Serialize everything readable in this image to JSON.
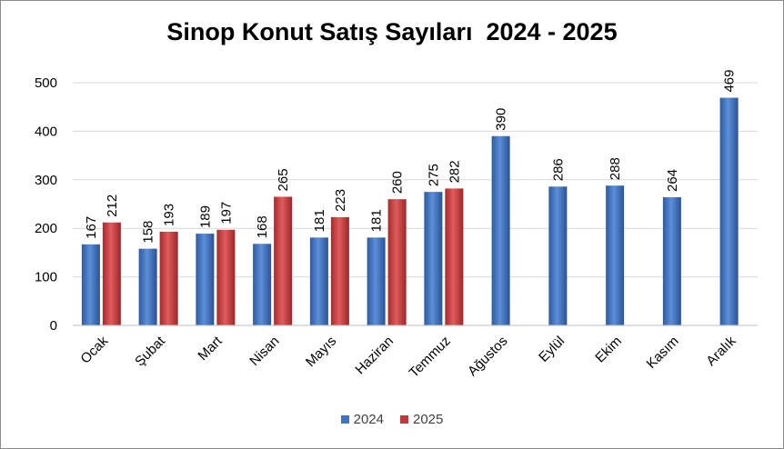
{
  "chart_data": {
    "type": "bar",
    "title": "Sinop Konut Satış Sayıları  2024 - 2025",
    "xlabel": "",
    "ylabel": "",
    "ylim": [
      0,
      500
    ],
    "yticks": [
      0,
      100,
      200,
      300,
      400,
      500
    ],
    "grid": true,
    "legend_position": "bottom",
    "categories": [
      "Ocak",
      "Şubat",
      "Mart",
      "Nisan",
      "Mayıs",
      "Haziran",
      "Temmuz",
      "Ağustos",
      "Eylül",
      "Ekim",
      "Kasım",
      "Aralık"
    ],
    "series": [
      {
        "name": "2024",
        "color": "#3f72c0",
        "values": [
          167,
          158,
          189,
          168,
          181,
          181,
          275,
          390,
          286,
          288,
          264,
          469
        ]
      },
      {
        "name": "2025",
        "color": "#c0393b",
        "values": [
          212,
          193,
          197,
          265,
          223,
          260,
          282,
          null,
          null,
          null,
          null,
          null
        ]
      }
    ]
  }
}
